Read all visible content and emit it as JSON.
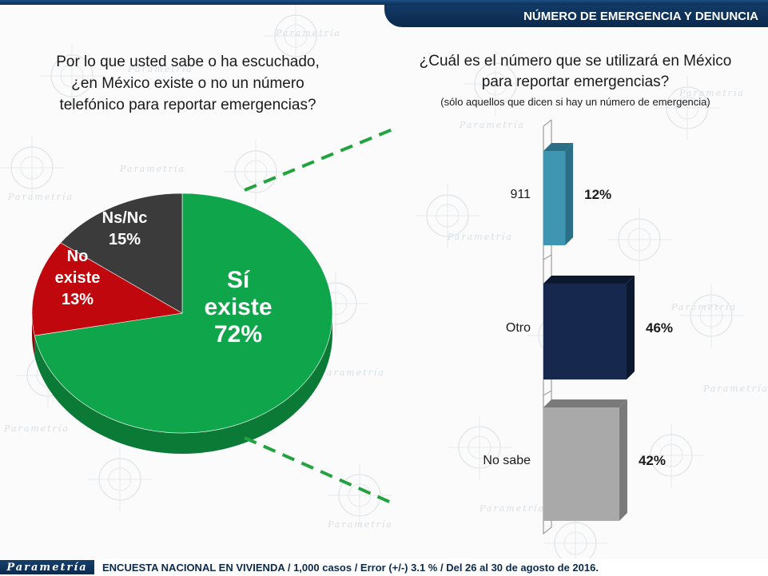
{
  "header": {
    "title": "NÚMERO DE EMERGENCIA Y DENUNCIA"
  },
  "questions": {
    "left_lines": [
      "Por lo que usted sabe o ha escuchado,",
      "¿en México existe o no un número",
      "telefónico para reportar emergencias?"
    ],
    "right_lines": [
      "¿Cuál es el número que se utilizará en México",
      "para reportar emergencias?"
    ],
    "right_note": "(sólo aquellos que dicen si hay un número de emergencia)"
  },
  "background": {
    "watermark": "Parametría"
  },
  "colors": {
    "pie_si": "#0fa54a",
    "pie_no": "#c1070e",
    "pie_nsnc": "#3b3b3b",
    "bar_911": "#3f96b2",
    "bar_otro": "#16284d",
    "bar_nosabe": "#a9a9a9",
    "connector": "#22a33f"
  },
  "chart_data": [
    {
      "type": "pie",
      "categories": [
        "Sí existe",
        "No existe",
        "Ns/Nc"
      ],
      "values": [
        72,
        13,
        15
      ],
      "labels": [
        [
          "Sí",
          "existe",
          "72%"
        ],
        [
          "No",
          "existe",
          "13%"
        ],
        [
          "Ns/Nc",
          "15%"
        ]
      ]
    },
    {
      "type": "bar",
      "orientation": "horizontal",
      "categories": [
        "911",
        "Otro",
        "No sabe"
      ],
      "values": [
        12,
        46,
        42
      ],
      "value_labels": [
        "12%",
        "46%",
        "42%"
      ]
    }
  ],
  "footer": {
    "logo": "Parametría",
    "text": "ENCUESTA NACIONAL EN VIVIENDA / 1,000 casos / Error (+/-) 3.1 % / Del 26 al 30 de agosto de 2016."
  }
}
